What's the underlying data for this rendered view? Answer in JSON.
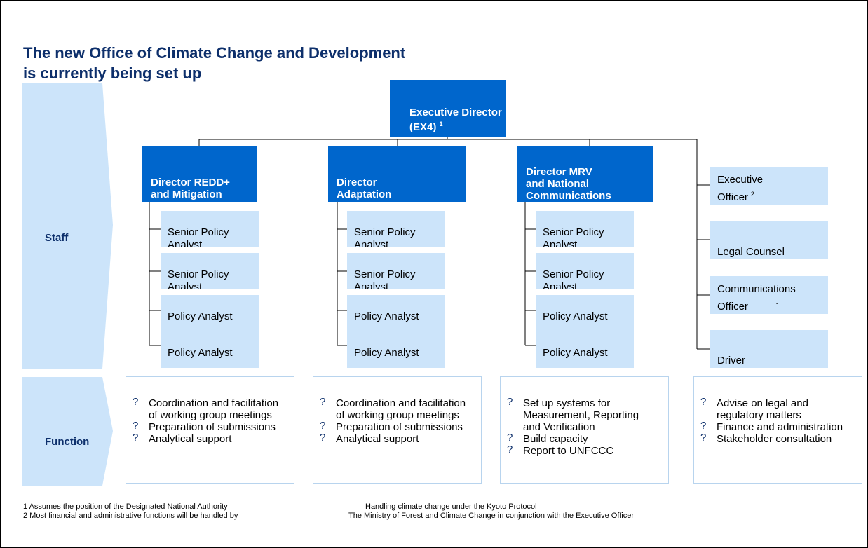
{
  "title": [
    "The new Office of Climate Change and Development",
    "is currently being set up"
  ],
  "rows": {
    "staff": "Staff",
    "function": "Function"
  },
  "executive": {
    "lines": [
      "Executive Director",
      "(EX4)"
    ],
    "note": "1"
  },
  "bullet": "?",
  "units": [
    {
      "director": [
        "Director REDD+",
        "and Mitigation"
      ],
      "staff": [
        [
          "Senior Policy",
          "Analyst"
        ],
        [
          "Senior Policy",
          "Analyst"
        ],
        [
          "Policy Analyst"
        ],
        [
          "Policy Analyst"
        ]
      ],
      "functions": [
        "Coordination and facilitation of working group meetings",
        "Preparation of submissions",
        "Analytical support"
      ]
    },
    {
      "director": [
        "Director",
        "Adaptation"
      ],
      "staff": [
        [
          "Senior Policy",
          "Analyst"
        ],
        [
          "Senior Policy",
          "Analyst"
        ],
        [
          "Policy Analyst"
        ],
        [
          "Policy Analyst"
        ]
      ],
      "functions": [
        "Coordination and facilitation of working group meetings",
        "Preparation of submissions",
        "Analytical support"
      ]
    },
    {
      "director": [
        "Director MRV",
        "and National",
        "Communications"
      ],
      "staff": [
        [
          "Senior Policy",
          "Analyst"
        ],
        [
          "Senior Policy",
          "Analyst"
        ],
        [
          "Policy Analyst"
        ],
        [
          "Policy Analyst"
        ]
      ],
      "functions": [
        "Set up systems for Measurement, Reporting and Verification",
        "Build capacity",
        "Report to UNFCCC"
      ]
    }
  ],
  "support": {
    "staff": [
      {
        "lines": [
          "Executive",
          "Officer"
        ],
        "note": "2"
      },
      {
        "lines": [
          "Legal Counsel"
        ]
      },
      {
        "lines": [
          "Communications",
          "Officer"
        ],
        "note": "-"
      },
      {
        "lines": [
          "Driver"
        ]
      }
    ],
    "functions": [
      "Advise on legal and regulatory matters",
      "Finance and administration",
      "Stakeholder consultation"
    ]
  },
  "footnotes": [
    [
      "1 Assumes the position of the Designated National Authority",
      "Handling climate change under the Kyoto Protocol"
    ],
    [
      "2 Most financial and administrative functions will be handled by",
      "The Ministry of Forest and Climate Change in conjunction with the Executive Officer"
    ]
  ]
}
